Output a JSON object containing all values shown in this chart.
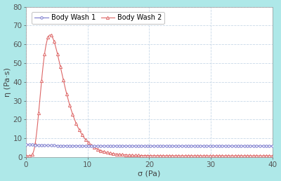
{
  "title": "",
  "xlabel": "σ (Pa)",
  "ylabel": "η (Pa·s)",
  "xlim": [
    0,
    40
  ],
  "ylim": [
    0,
    80
  ],
  "xticks": [
    0,
    10,
    20,
    30,
    40
  ],
  "yticks": [
    0,
    10,
    20,
    30,
    40,
    50,
    60,
    70,
    80
  ],
  "background_color": "#aee8e8",
  "plot_bg_color": "#ffffff",
  "grid_color": "#c8d8e8",
  "bw1_color": "#7777cc",
  "bw2_color": "#dd6666",
  "legend_labels": [
    "Body Wash 1",
    "Body Wash 2"
  ],
  "figsize": [
    4.0,
    2.58
  ],
  "dpi": 100
}
